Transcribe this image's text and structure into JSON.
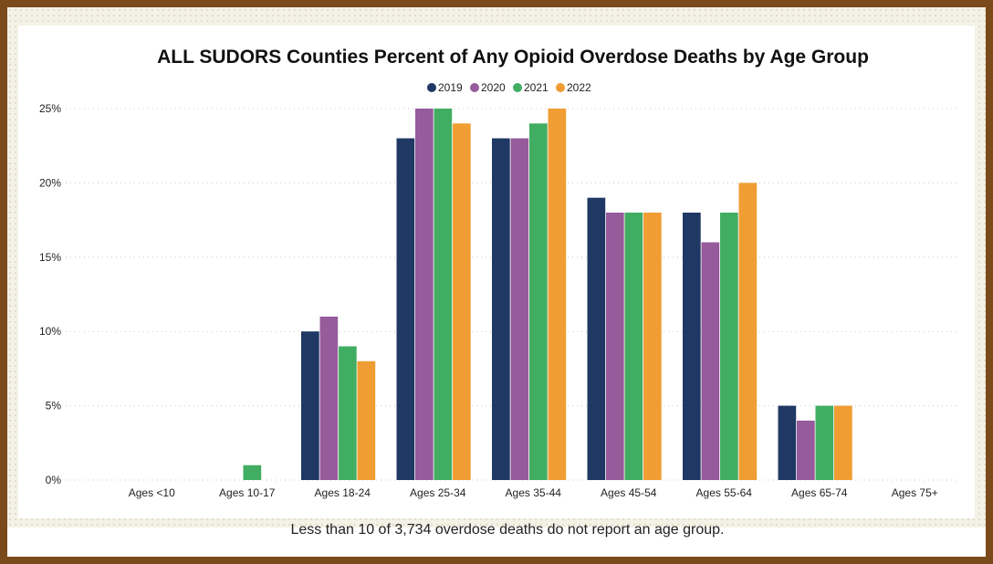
{
  "chart_data": {
    "type": "bar",
    "title": "ALL SUDORS Counties Percent of Any Opioid Overdose Deaths by Age Group",
    "categories": [
      "Ages <10",
      "Ages 10-17",
      "Ages 18-24",
      "Ages 25-34",
      "Ages 35-44",
      "Ages 45-54",
      "Ages 55-64",
      "Ages 65-74",
      "Ages 75+"
    ],
    "series": [
      {
        "name": "2019",
        "color": "#1f3864",
        "values": [
          0,
          0,
          10,
          23,
          23,
          19,
          18,
          5,
          0
        ]
      },
      {
        "name": "2020",
        "color": "#955b9b",
        "values": [
          0,
          0,
          11,
          25,
          23,
          18,
          16,
          4,
          0
        ]
      },
      {
        "name": "2021",
        "color": "#41ad62",
        "values": [
          0,
          1,
          9,
          25,
          24,
          18,
          18,
          5,
          0
        ]
      },
      {
        "name": "2022",
        "color": "#f09d33",
        "values": [
          0,
          0,
          8,
          24,
          25,
          18,
          20,
          5,
          0
        ]
      }
    ],
    "ylim": [
      0,
      25
    ],
    "yticks": [
      0,
      5,
      10,
      15,
      20,
      25
    ],
    "ytick_labels": [
      "0%",
      "5%",
      "10%",
      "15%",
      "20%",
      "25%"
    ],
    "xlabel": "",
    "ylabel": "",
    "legend_position": "top-center",
    "grid": true
  },
  "footnote": "Less than 10 of 3,734 overdose deaths do not report an age group."
}
